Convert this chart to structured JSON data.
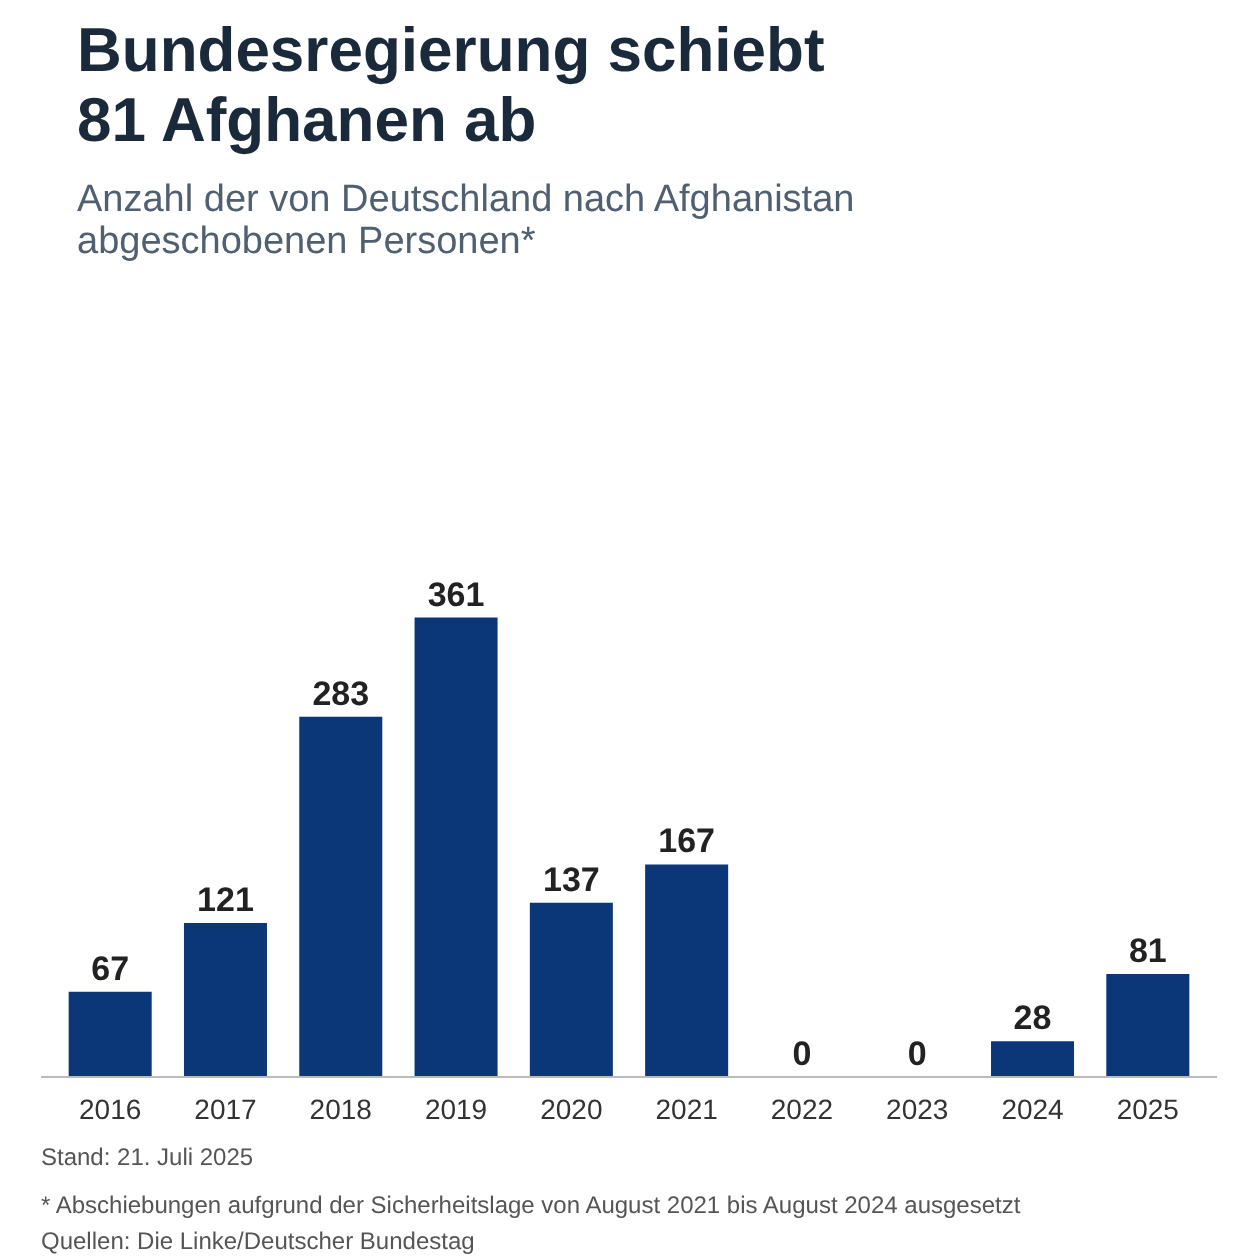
{
  "chart_data": {
    "type": "bar",
    "title": "Bundesregierung schiebt\n81 Afghanen ab",
    "subtitle": "Anzahl der von Deutschland nach Afghanistan\nabgeschobenen Personen*",
    "categories": [
      "2016",
      "2017",
      "2018",
      "2019",
      "2020",
      "2021",
      "2022",
      "2023",
      "2024",
      "2025"
    ],
    "values": [
      67,
      121,
      283,
      361,
      137,
      167,
      0,
      0,
      28,
      81
    ],
    "color": "#0b3677",
    "data_labels": true,
    "grid": false,
    "annotations": [
      "Stand: 21. Juli 2025",
      "* Abschiebungen aufgrund der Sicherheitslage von August 2021 bis August 2024 ausgesetzt",
      "Quellen: Die Linke/Deutscher Bundestag"
    ]
  }
}
